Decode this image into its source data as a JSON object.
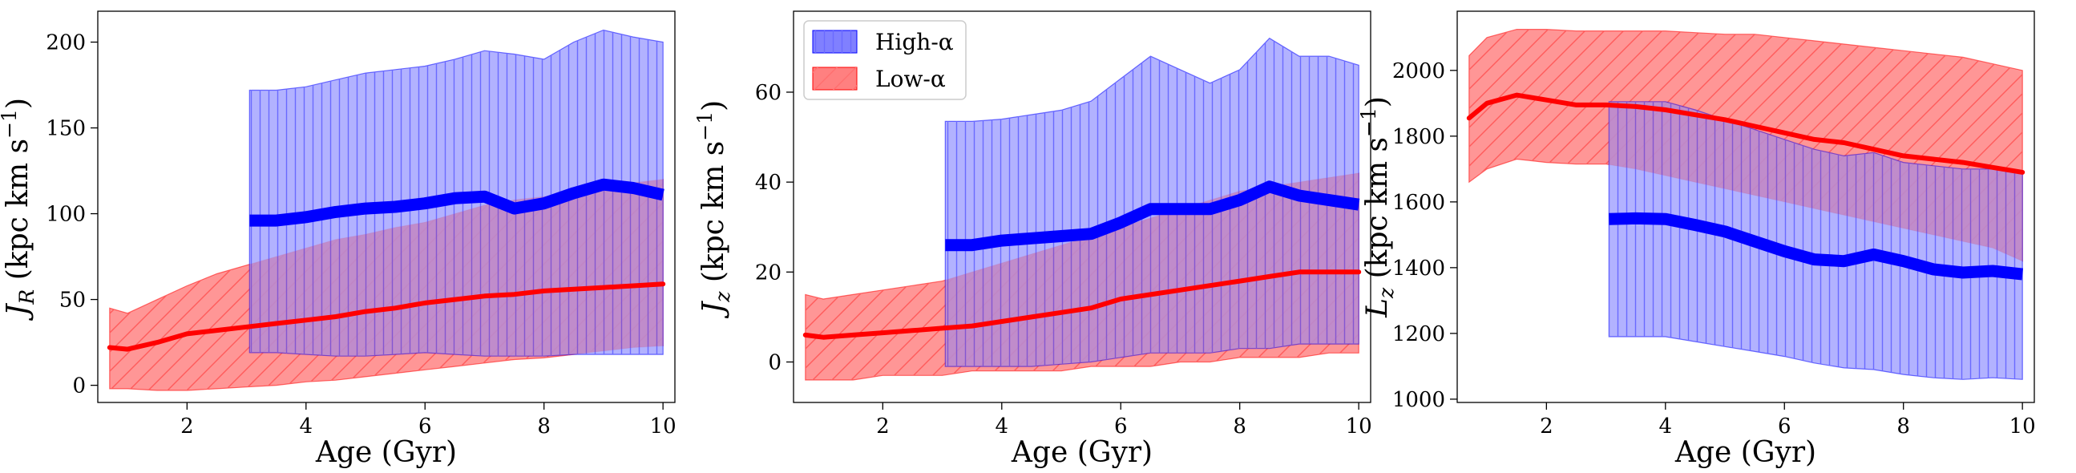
{
  "colors": {
    "high": "#0000ff",
    "high_fill": "#aaaaff",
    "high_hatch": "#6a6aff",
    "low": "#ff0000",
    "low_fill": "#ffb0b0",
    "low_hatch": "#ff6f6f",
    "low_line_over": "#cc0033"
  },
  "legend": {
    "placement": "top-left of second panel",
    "high_label": "High-α",
    "low_label": "Low-α"
  },
  "chart_data": [
    {
      "type": "area",
      "id": "jr",
      "xlabel": "Age (Gyr)",
      "ylabel": "J_R (kpc km s⁻¹)",
      "ylabel_parts": {
        "sym": "J",
        "sub": "R",
        "pre": " (kpc km s",
        "sup": "−1",
        "post": ")"
      },
      "xlim": [
        0.5,
        10.2
      ],
      "ylim": [
        -10,
        218
      ],
      "xticks": [
        2,
        4,
        6,
        8,
        10
      ],
      "yticks": [
        0,
        50,
        100,
        150,
        200
      ],
      "series": [
        {
          "name": "Low-α",
          "x": [
            0.7,
            1.0,
            1.5,
            2.0,
            2.5,
            3.0,
            3.5,
            4.0,
            4.5,
            5.0,
            5.5,
            6.0,
            6.5,
            7.0,
            7.5,
            8.0,
            8.5,
            9.0,
            9.5,
            10.0
          ],
          "median": [
            22,
            21,
            25,
            30,
            32,
            34,
            36,
            38,
            40,
            43,
            45,
            48,
            50,
            52,
            53,
            55,
            56,
            57,
            58,
            59
          ],
          "upper": [
            45,
            42,
            50,
            58,
            65,
            70,
            75,
            80,
            85,
            88,
            92,
            95,
            100,
            105,
            108,
            110,
            112,
            115,
            118,
            120
          ],
          "lower": [
            -2,
            -2,
            -3,
            -3,
            -2,
            -1,
            0,
            2,
            3,
            5,
            7,
            9,
            11,
            13,
            15,
            16,
            18,
            20,
            22,
            23
          ]
        },
        {
          "name": "High-α",
          "x": [
            3.05,
            3.5,
            4.0,
            4.5,
            5.0,
            5.5,
            6.0,
            6.5,
            7.0,
            7.5,
            8.0,
            8.5,
            9.0,
            9.5,
            10.0
          ],
          "median": [
            96,
            96,
            98,
            101,
            103,
            104,
            106,
            109,
            110,
            103,
            106,
            112,
            117,
            115,
            111
          ],
          "upper": [
            172,
            172,
            174,
            178,
            182,
            184,
            186,
            190,
            195,
            193,
            190,
            200,
            207,
            203,
            200
          ],
          "lower": [
            19,
            19,
            18,
            17,
            17,
            18,
            19,
            18,
            17,
            17,
            17,
            18,
            18,
            18,
            18
          ]
        }
      ]
    },
    {
      "type": "area",
      "id": "jz",
      "xlabel": "Age (Gyr)",
      "ylabel": "J_z (kpc km s⁻¹)",
      "ylabel_parts": {
        "sym": "J",
        "sub": "z",
        "pre": " (kpc km s",
        "sup": "−1",
        "post": ")"
      },
      "xlim": [
        0.5,
        10.2
      ],
      "ylim": [
        -9,
        78
      ],
      "xticks": [
        2,
        4,
        6,
        8,
        10
      ],
      "yticks": [
        0,
        20,
        40,
        60
      ],
      "series": [
        {
          "name": "Low-α",
          "x": [
            0.7,
            1.0,
            1.5,
            2.0,
            2.5,
            3.0,
            3.5,
            4.0,
            4.5,
            5.0,
            5.5,
            6.0,
            6.5,
            7.0,
            7.5,
            8.0,
            8.5,
            9.0,
            9.5,
            10.0
          ],
          "median": [
            6,
            5.5,
            6,
            6.5,
            7,
            7.5,
            8,
            9,
            10,
            11,
            12,
            14,
            15,
            16,
            17,
            18,
            19,
            20,
            20,
            20
          ],
          "upper": [
            15,
            14,
            15,
            16,
            17,
            18,
            20,
            22,
            24,
            26,
            28,
            30,
            32,
            34,
            36,
            38,
            39,
            40,
            41,
            42
          ],
          "lower": [
            -4,
            -4,
            -4,
            -3,
            -3,
            -3,
            -2,
            -2,
            -2,
            -2,
            -1,
            -1,
            -1,
            0,
            0,
            1,
            1,
            1,
            2,
            2
          ]
        },
        {
          "name": "High-α",
          "x": [
            3.05,
            3.5,
            4.0,
            4.5,
            5.0,
            5.5,
            6.0,
            6.5,
            7.0,
            7.5,
            8.0,
            8.5,
            9.0,
            9.5,
            10.0
          ],
          "median": [
            26,
            26,
            27,
            27.5,
            28,
            28.5,
            31,
            34,
            34,
            34,
            36,
            39,
            37,
            36,
            35
          ],
          "upper": [
            53.5,
            53.5,
            54,
            55,
            56,
            58,
            63,
            68,
            65,
            62,
            65,
            72,
            68,
            68,
            66
          ],
          "lower": [
            -1,
            -1,
            -1,
            -1,
            -0.5,
            0,
            1,
            2,
            2,
            2,
            3,
            3,
            4,
            4,
            4
          ]
        }
      ]
    },
    {
      "type": "area",
      "id": "lz",
      "xlabel": "Age (Gyr)",
      "ylabel": "L_z (kpc km s⁻¹)",
      "ylabel_parts": {
        "sym": "L",
        "sub": "z",
        "pre": " (kpc km s",
        "sup": "−1",
        "post": ")"
      },
      "xlim": [
        0.5,
        10.2
      ],
      "ylim": [
        990,
        2180
      ],
      "xticks": [
        2,
        4,
        6,
        8,
        10
      ],
      "yticks": [
        1000,
        1200,
        1400,
        1600,
        1800,
        2000
      ],
      "series": [
        {
          "name": "Low-α",
          "x": [
            0.7,
            1.0,
            1.5,
            2.0,
            2.5,
            3.0,
            3.5,
            4.0,
            4.5,
            5.0,
            5.5,
            6.0,
            6.5,
            7.0,
            7.5,
            8.0,
            8.5,
            9.0,
            9.5,
            10.0
          ],
          "median": [
            1855,
            1900,
            1925,
            1910,
            1895,
            1895,
            1890,
            1880,
            1865,
            1850,
            1830,
            1810,
            1790,
            1780,
            1760,
            1740,
            1730,
            1720,
            1705,
            1690
          ],
          "upper": [
            2045,
            2100,
            2125,
            2125,
            2120,
            2120,
            2120,
            2120,
            2115,
            2110,
            2110,
            2100,
            2090,
            2080,
            2070,
            2060,
            2050,
            2040,
            2020,
            2000
          ],
          "lower": [
            1660,
            1700,
            1730,
            1720,
            1715,
            1715,
            1700,
            1680,
            1660,
            1640,
            1620,
            1600,
            1580,
            1560,
            1540,
            1520,
            1500,
            1480,
            1460,
            1420
          ]
        },
        {
          "name": "High-α",
          "x": [
            3.05,
            3.5,
            4.0,
            4.5,
            5.0,
            5.5,
            6.0,
            6.5,
            7.0,
            7.5,
            8.0,
            8.5,
            9.0,
            9.5,
            10.0
          ],
          "median": [
            1548,
            1550,
            1548,
            1530,
            1510,
            1480,
            1450,
            1425,
            1420,
            1440,
            1420,
            1395,
            1385,
            1390,
            1380
          ],
          "upper": [
            1905,
            1905,
            1905,
            1880,
            1850,
            1820,
            1790,
            1760,
            1740,
            1750,
            1720,
            1710,
            1700,
            1700,
            1690
          ],
          "lower": [
            1190,
            1190,
            1190,
            1175,
            1160,
            1145,
            1130,
            1110,
            1095,
            1090,
            1075,
            1065,
            1060,
            1065,
            1060
          ]
        }
      ]
    }
  ]
}
